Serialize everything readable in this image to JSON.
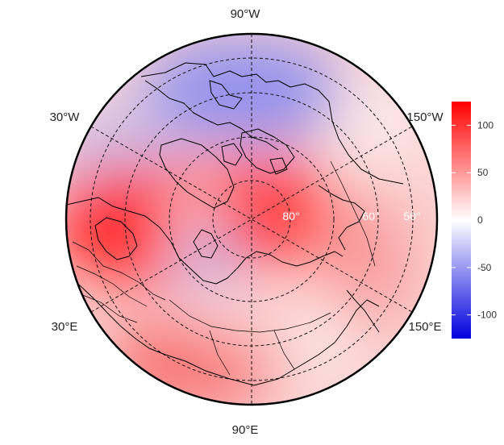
{
  "map": {
    "projection": "north-polar-stereographic",
    "longitude_labels": {
      "top": "90°W",
      "upper_left": "30°W",
      "upper_right": "150°W",
      "lower_left": "30°E",
      "lower_right": "150°E",
      "bottom": "90°E"
    },
    "latitude_labels": [
      "80°",
      "60°",
      "50°"
    ],
    "field": {
      "description_colors": {
        "negative": "#0000dd",
        "zero": "#ffffff",
        "positive": "#ff0000"
      }
    }
  },
  "colorbar": {
    "min": -125,
    "max": 125,
    "ticks": [
      "100",
      "50",
      "0",
      "-50",
      "-100"
    ],
    "tick_values": [
      100,
      50,
      0,
      -50,
      -100
    ],
    "colors": {
      "low": "#0000dd",
      "mid": "#ffffff",
      "high": "#ff0000"
    }
  }
}
